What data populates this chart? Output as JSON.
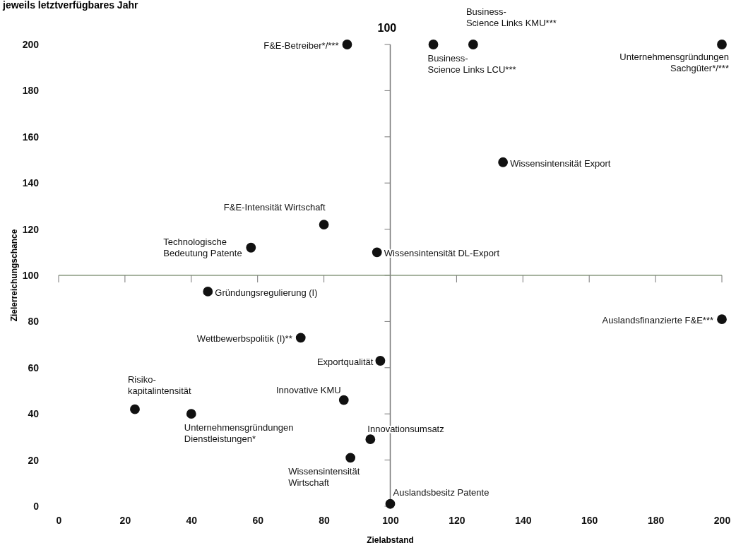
{
  "chart_data": {
    "type": "scatter",
    "title": "jeweils letztverfügbares Jahr",
    "xlabel": "Zielabstand",
    "ylabel": "Zielerreichungschance",
    "xlim": [
      0,
      200
    ],
    "ylim": [
      0,
      200
    ],
    "xticks": [
      0,
      20,
      40,
      60,
      80,
      100,
      120,
      140,
      160,
      180,
      200
    ],
    "yticks": [
      0,
      20,
      40,
      60,
      80,
      100,
      120,
      140,
      160,
      180,
      200
    ],
    "grid": false,
    "marker": "circle",
    "series": [
      {
        "color": "#111111",
        "x": [
          87,
          113,
          125,
          200,
          134,
          80,
          58,
          96,
          45,
          200,
          73,
          97,
          86,
          23,
          40,
          94,
          88,
          100
        ],
        "values": [
          200,
          200,
          200,
          200,
          149,
          122,
          112,
          110,
          93,
          81,
          73,
          63,
          46,
          42,
          40,
          29,
          21,
          1
        ]
      }
    ],
    "annotations": [
      {
        "text": "F&E-Betreiber*/***",
        "x": 87,
        "y": 200
      },
      {
        "text": "Business-\nScience Links LCU***",
        "x": 113,
        "y": 200
      },
      {
        "text": "Business-\nScience Links KMU***",
        "x": 125,
        "y": 200
      },
      {
        "text": "Unternehmensgründungen\nSachgüter*/***",
        "x": 200,
        "y": 200
      },
      {
        "text": "Wissensintensität Export",
        "x": 134,
        "y": 149
      },
      {
        "text": "F&E-Intensität Wirtschaft",
        "x": 80,
        "y": 122
      },
      {
        "text": "Technologische\nBedeutung Patente",
        "x": 58,
        "y": 112
      },
      {
        "text": "Wissensintensität DL-Export",
        "x": 96,
        "y": 110
      },
      {
        "text": "Gründungsregulierung (I)",
        "x": 45,
        "y": 93
      },
      {
        "text": "Auslandsfinanzierte F&E***",
        "x": 200,
        "y": 81
      },
      {
        "text": "Wettbewerbspolitik (I)**",
        "x": 73,
        "y": 73
      },
      {
        "text": "Exportqualität",
        "x": 97,
        "y": 63
      },
      {
        "text": "Innovative KMU",
        "x": 86,
        "y": 46
      },
      {
        "text": "Risiko-\nkapitalintensität",
        "x": 23,
        "y": 42
      },
      {
        "text": "Unternehmensgründungen\nDienstleistungen*",
        "x": 40,
        "y": 40
      },
      {
        "text": "Innovationsumsatz",
        "x": 94,
        "y": 29
      },
      {
        "text": "Wissensintensität\nWirtschaft",
        "x": 88,
        "y": 21
      },
      {
        "text": "Auslandsbesitz Patente",
        "x": 100,
        "y": 1
      }
    ],
    "ref_lines": [
      {
        "axis": "x",
        "value": 100,
        "label": "100"
      },
      {
        "axis": "y",
        "value": 100
      }
    ]
  }
}
